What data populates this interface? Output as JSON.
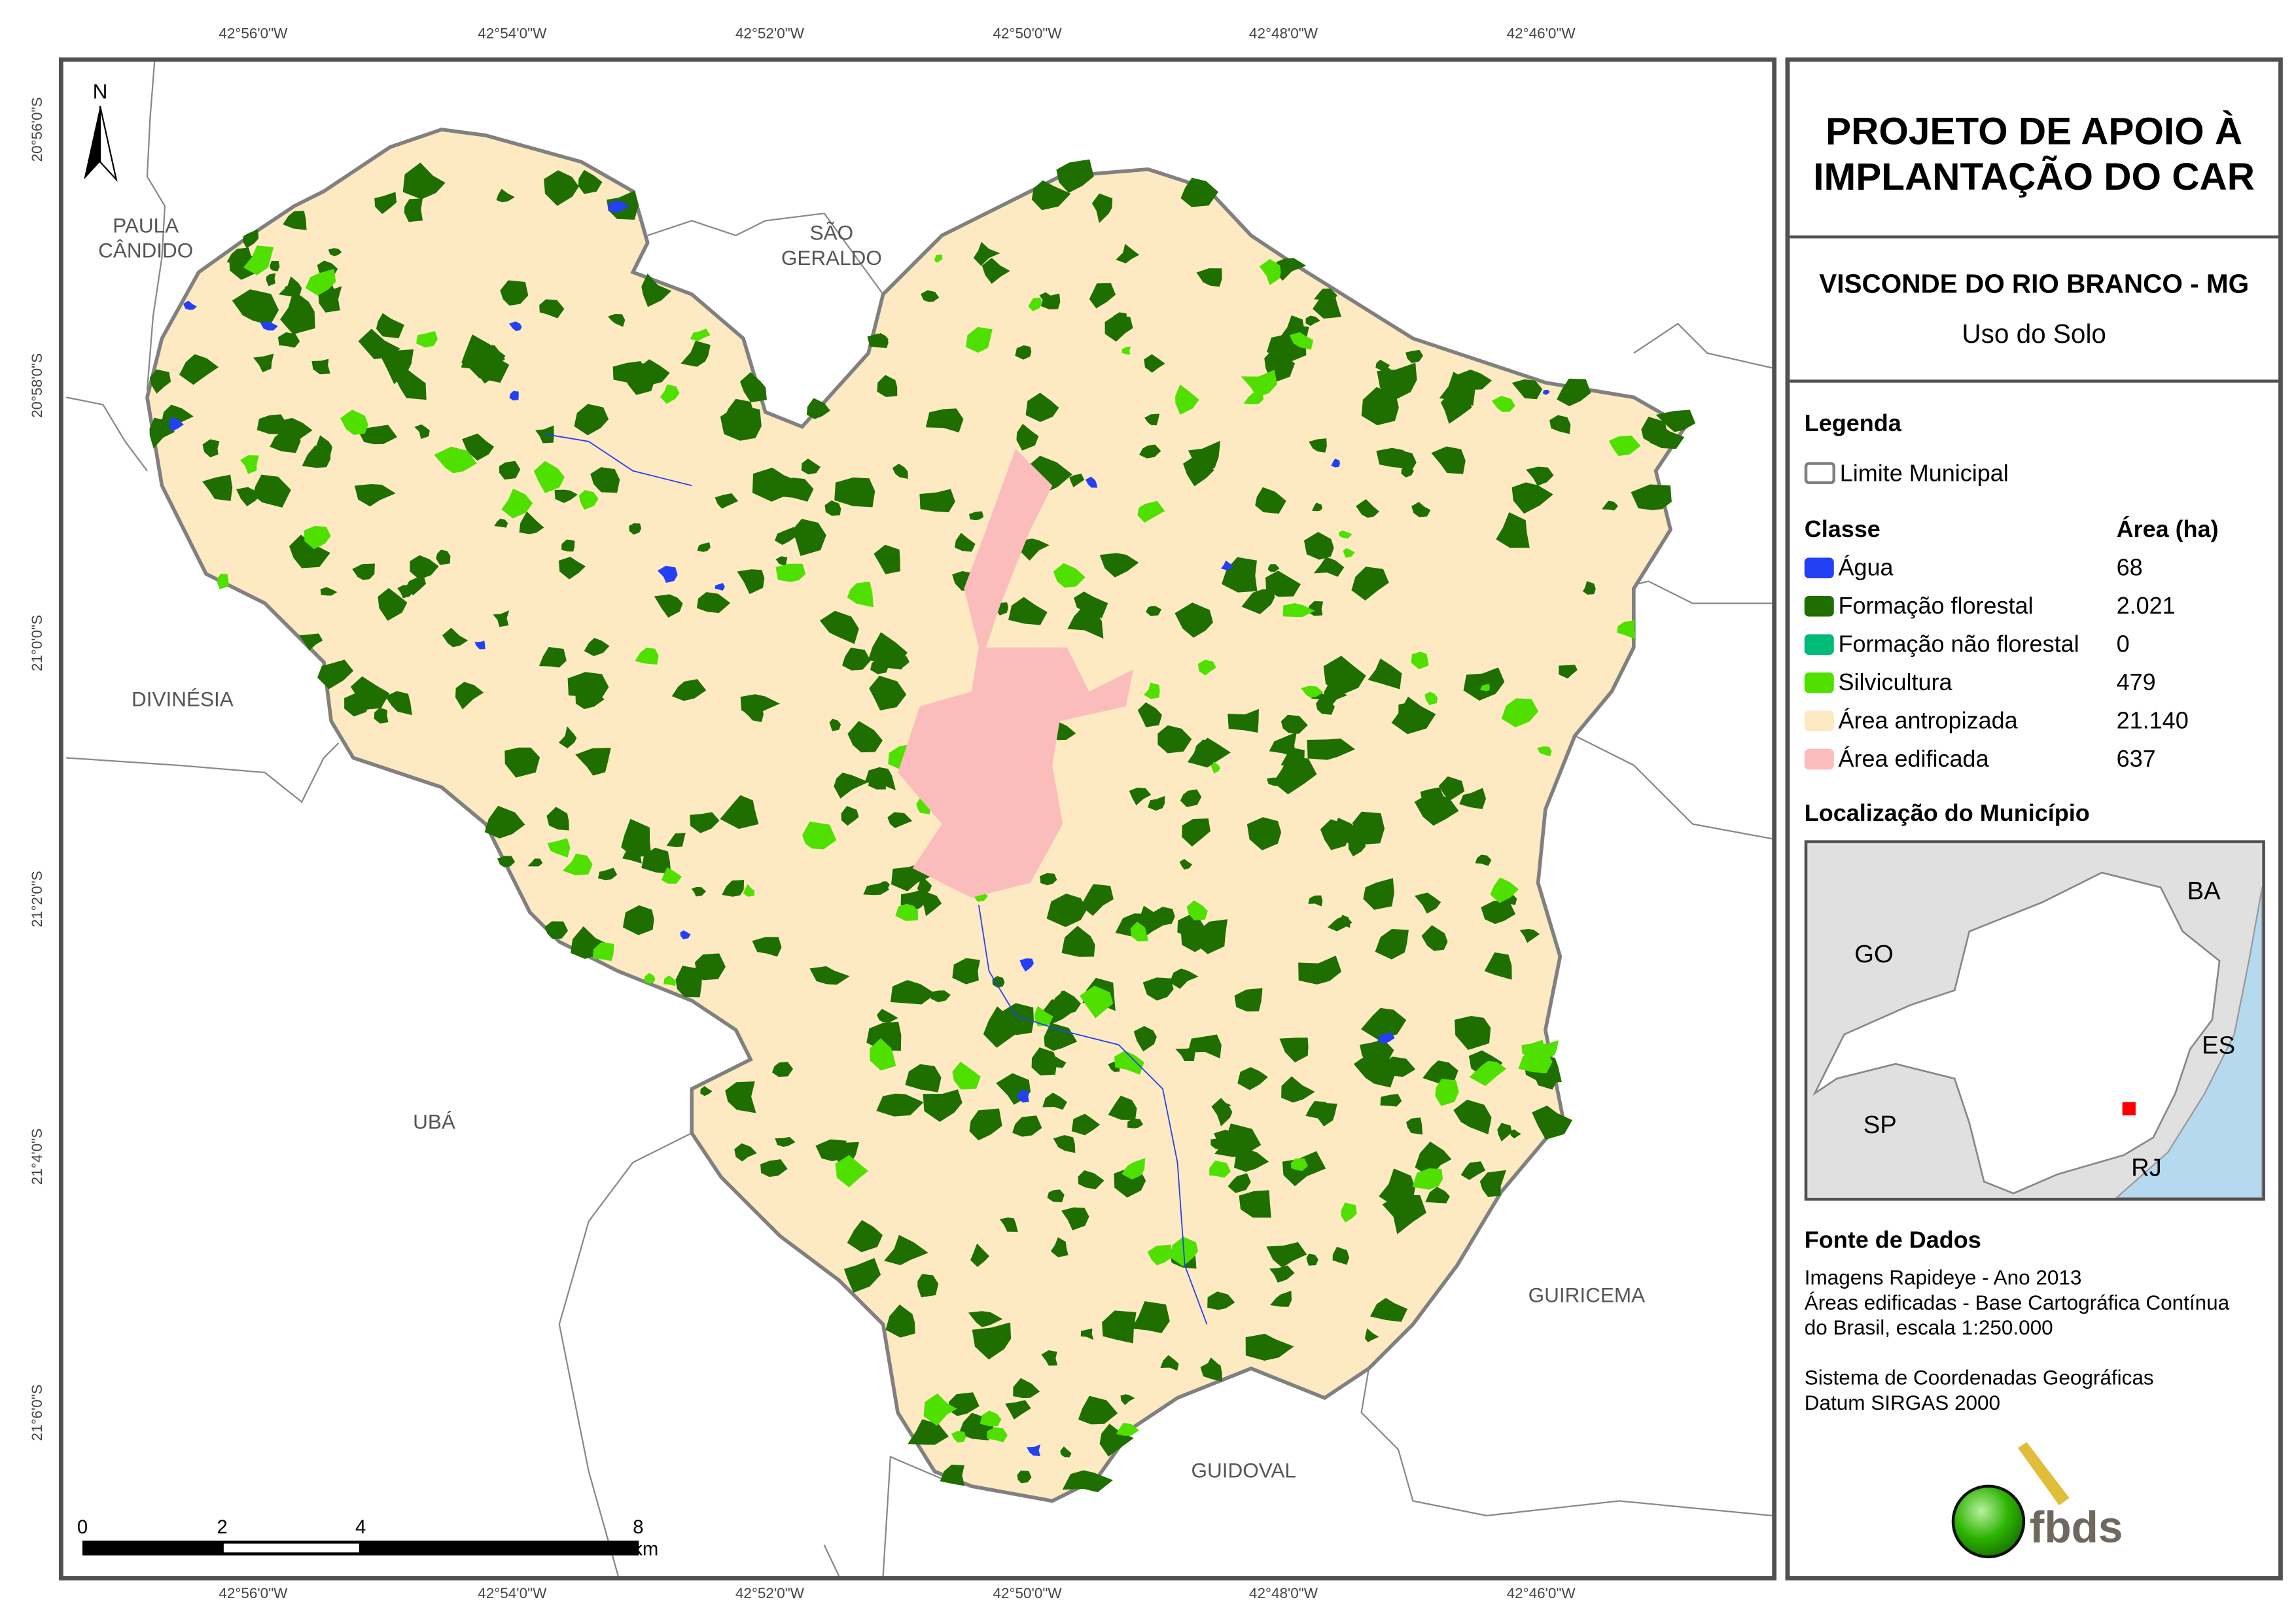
{
  "graticule": {
    "longitudes": [
      "42°56'0\"W",
      "42°54'0\"W",
      "42°52'0\"W",
      "42°50'0\"W",
      "42°48'0\"W",
      "42°46'0\"W"
    ],
    "latitudes": [
      "20°56'0\"S",
      "20°58'0\"S",
      "21°0'0\"S",
      "21°2'0\"S",
      "21°4'0\"S",
      "21°6'0\"S"
    ]
  },
  "north_arrow": {
    "label": "N",
    "icon": "north-arrow-icon"
  },
  "neighbors": [
    "PAULA\nCÂNDIDO",
    "SÃO\nGERALDO",
    "DIVINÉSIA",
    "UBÁ",
    "GUIRICEMA",
    "GUIDOVAL"
  ],
  "scale_bar": {
    "labels": [
      "0",
      "2",
      "4",
      "8 km"
    ]
  },
  "panel": {
    "title": "PROJETO DE APOIO À IMPLANTAÇÃO DO CAR",
    "municipality": "VISCONDE DO RIO BRANCO - MG",
    "subtitle": "Uso do Solo",
    "legend_title": "Legenda",
    "boundary_label": "Limite Municipal",
    "class_header": "Classe",
    "area_header": "Área (ha)",
    "classes": [
      {
        "name": "Água",
        "area": "68",
        "color": "#2340f5"
      },
      {
        "name": "Formação florestal",
        "area": "2.021",
        "color": "#1e6e00"
      },
      {
        "name": "Formação não florestal",
        "area": "0",
        "color": "#00bb77"
      },
      {
        "name": "Silvicultura",
        "area": "479",
        "color": "#4fe000"
      },
      {
        "name": "Área antropizada",
        "area": "21.140",
        "color": "#fde9c2"
      },
      {
        "name": "Área edificada",
        "area": "637",
        "color": "#fbbcbc"
      }
    ],
    "location_title": "Localização do Município",
    "inset_labels": [
      "GO",
      "BA",
      "ES",
      "SP",
      "RJ"
    ],
    "sources_title": "Fonte de Dados",
    "sources": [
      "Imagens Rapideye - Ano 2013",
      "Áreas edificadas - Base Cartográfica Contínua",
      "do Brasil, escala 1:250.000"
    ],
    "crs": [
      "Sistema de Coordenadas Geográficas",
      "Datum SIRGAS 2000"
    ],
    "logo_text": "fbds"
  }
}
